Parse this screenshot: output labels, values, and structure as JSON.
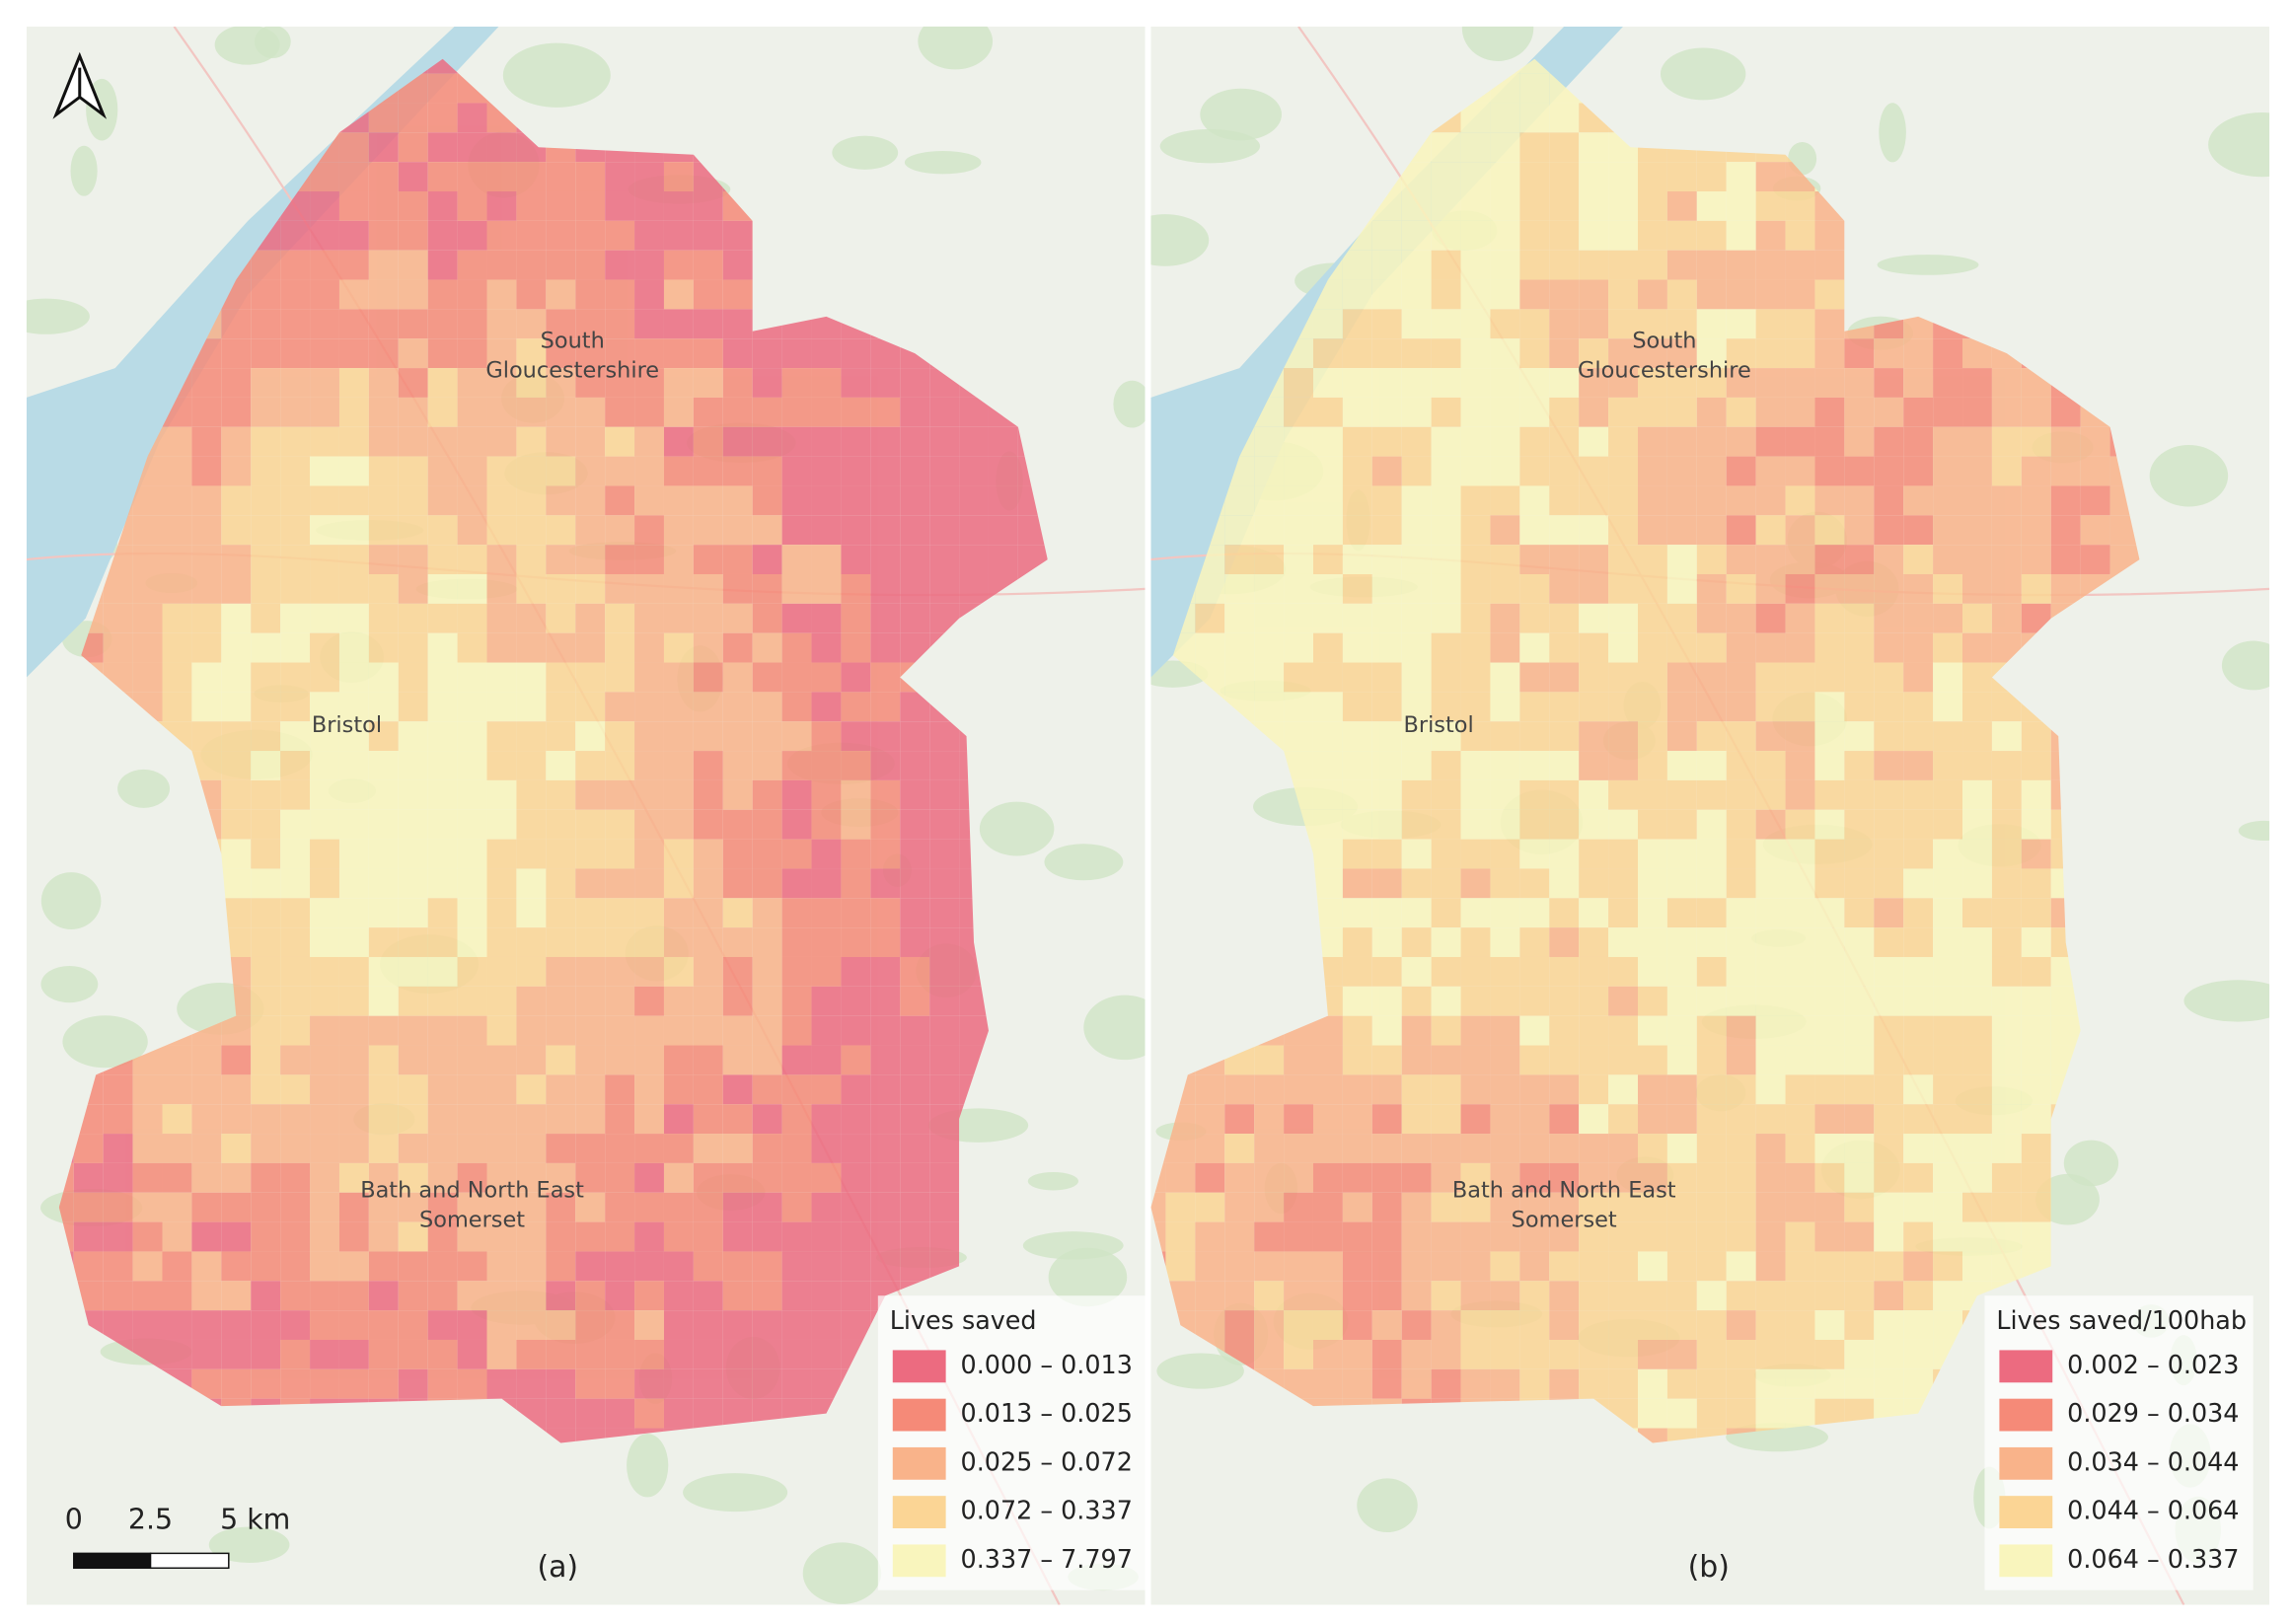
{
  "panels": [
    {
      "label": "(a)",
      "places": [
        {
          "lines": [
            "South",
            "Gloucestershire"
          ]
        },
        {
          "lines": [
            "Bristol"
          ]
        },
        {
          "lines": [
            "Bath and North East",
            "Somerset"
          ]
        }
      ],
      "legend": {
        "title": "Lives saved",
        "entries": [
          {
            "label": "0.000 – 0.013",
            "color": "#ec6b80"
          },
          {
            "label": "0.013 – 0.025",
            "color": "#f58a78"
          },
          {
            "label": "0.025 – 0.072",
            "color": "#f9b38a"
          },
          {
            "label": "0.072 – 0.337",
            "color": "#fbd595"
          },
          {
            "label": "0.337 – 7.797",
            "color": "#f9f5bd"
          }
        ]
      },
      "scale_bar": {
        "labels": [
          "0",
          "2.5",
          "5 km"
        ]
      }
    },
    {
      "label": "(b)",
      "places": [
        {
          "lines": [
            "South",
            "Gloucestershire"
          ]
        },
        {
          "lines": [
            "Bristol"
          ]
        },
        {
          "lines": [
            "Bath and North East",
            "Somerset"
          ]
        }
      ],
      "legend": {
        "title": "Lives saved/100hab",
        "entries": [
          {
            "label": "0.002 – 0.023",
            "color": "#ec6b80"
          },
          {
            "label": "0.029 – 0.034",
            "color": "#f58a78"
          },
          {
            "label": "0.034 – 0.044",
            "color": "#f9b38a"
          },
          {
            "label": "0.044 – 0.064",
            "color": "#fbd595"
          },
          {
            "label": "0.064 – 0.337",
            "color": "#f9f5bd"
          }
        ]
      }
    }
  ]
}
